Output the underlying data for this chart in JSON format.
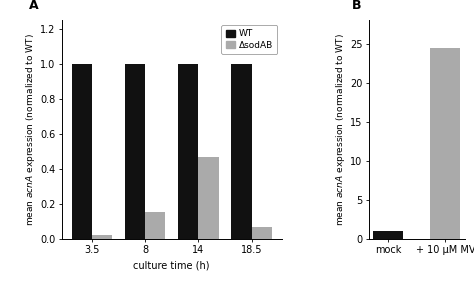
{
  "panel_a": {
    "categories": [
      "3.5",
      "8",
      "14",
      "18.5"
    ],
    "wt_values": [
      1.0,
      1.0,
      1.0,
      1.0
    ],
    "sod_values": [
      0.022,
      0.155,
      0.47,
      0.065
    ],
    "xlabel": "culture time (h)",
    "ylim": [
      0,
      1.25
    ],
    "yticks": [
      0.0,
      0.2,
      0.4,
      0.6,
      0.8,
      1.0,
      1.2
    ],
    "panel_label": "A",
    "legend_wt": "WT",
    "legend_sod": "ΔsodAB"
  },
  "panel_b": {
    "categories": [
      "mock",
      "+ 10 μM MV"
    ],
    "values": [
      1.0,
      24.5
    ],
    "bar_colors": [
      "#111111",
      "#aaaaaa"
    ],
    "ylim": [
      0,
      28
    ],
    "yticks": [
      0,
      5,
      10,
      15,
      20,
      25
    ],
    "panel_label": "B"
  },
  "wt_color": "#111111",
  "sod_color": "#aaaaaa",
  "bar_width": 0.38,
  "figure_bg": "#ffffff"
}
